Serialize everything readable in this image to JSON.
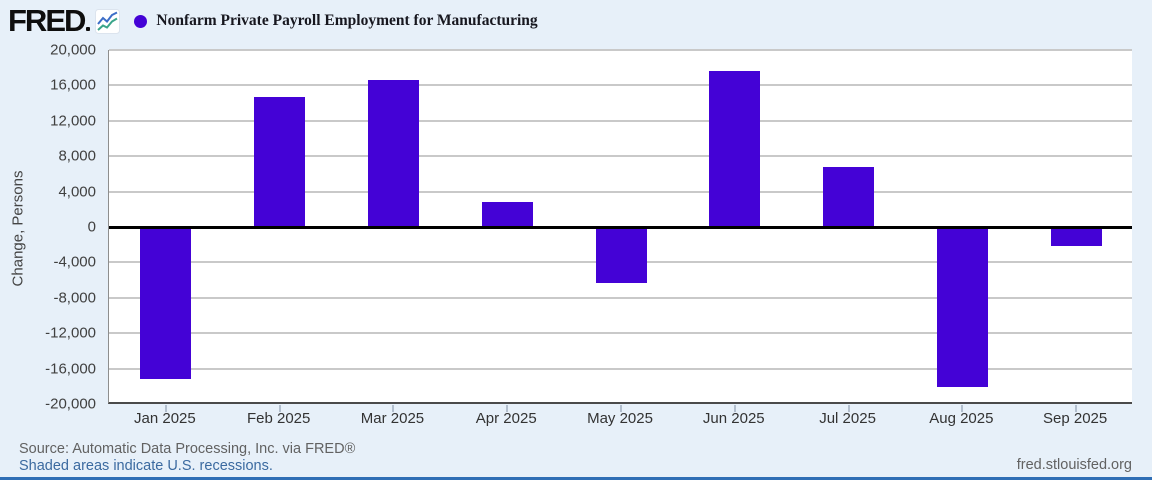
{
  "header": {
    "logo_text": "FRED",
    "series_title": "Nonfarm Private Payroll Employment for Manufacturing"
  },
  "chart_data": {
    "type": "bar",
    "title": "Nonfarm Private Payroll Employment for Manufacturing",
    "ylabel": "Change, Persons",
    "xlabel": "",
    "categories": [
      "Jan 2025",
      "Feb 2025",
      "Mar 2025",
      "Apr 2025",
      "May 2025",
      "Jun 2025",
      "Jul 2025",
      "Aug 2025",
      "Sep 2025"
    ],
    "values": [
      -17200,
      14700,
      16600,
      2800,
      -6300,
      17600,
      6800,
      -18100,
      -2100
    ],
    "ylim": [
      -20000,
      20000
    ],
    "ytick_step": 4000,
    "grid": true,
    "legend_position": "top-left",
    "bar_color": "#4402d6"
  },
  "footer": {
    "source": "Source: Automatic Data Processing, Inc. via FRED®",
    "recession_note": "Shaded areas indicate U.S. recessions.",
    "site": "fred.stlouisfed.org"
  },
  "colors": {
    "bar": "#4402d6",
    "page_background": "#e7f0f9",
    "plot_background": "#ffffff",
    "gridline": "#c9c9c9",
    "zero_line": "#000000",
    "link": "#3b6aa0",
    "bottom_border": "#2f6eb5"
  }
}
